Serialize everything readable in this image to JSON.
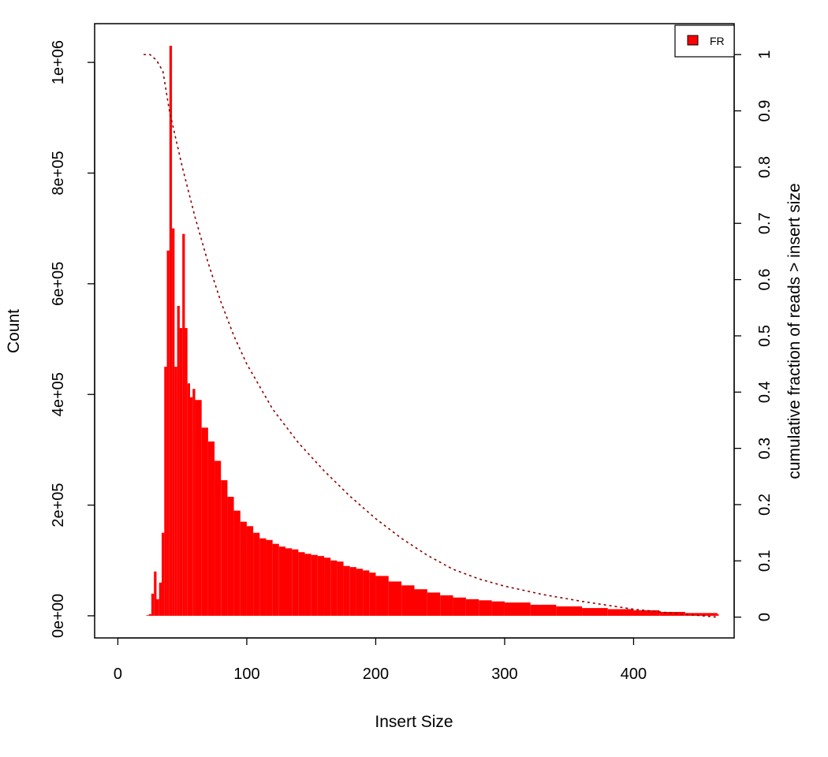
{
  "chart_data": {
    "type": "bar",
    "title": "",
    "xlabel": "Insert Size",
    "ylabel": "Count",
    "y2label": "cumulative fraction of reads > insert size",
    "xlim": [
      -18,
      478
    ],
    "ylim": [
      -40000,
      1070000
    ],
    "y2lim": [
      -0.037,
      1.055
    ],
    "xticks": [
      "0",
      "100",
      "200",
      "300",
      "400"
    ],
    "yticks": [
      "0e+00",
      "2e+05",
      "4e+05",
      "6e+05",
      "8e+05",
      "1e+06"
    ],
    "y2ticks": [
      "0",
      "0.1",
      "0.2",
      "0.3",
      "0.4",
      "0.5",
      "0.6",
      "0.7",
      "0.8",
      "0.9",
      "1"
    ],
    "legend": {
      "position": "top-right",
      "entries": [
        "FR"
      ]
    },
    "grid": false,
    "colors": {
      "bars": "#ff0000",
      "cumulative": "#8b0000",
      "legend_fill": "#ff0000"
    },
    "series": [
      {
        "name": "FR",
        "type": "bar",
        "x": [
          20,
          22,
          24,
          26,
          28,
          30,
          32,
          34,
          36,
          38,
          40,
          42,
          44,
          46,
          48,
          50,
          52,
          54,
          56,
          58,
          60,
          65,
          70,
          75,
          80,
          85,
          90,
          95,
          100,
          105,
          110,
          115,
          120,
          125,
          130,
          135,
          140,
          145,
          150,
          155,
          160,
          165,
          170,
          175,
          180,
          185,
          190,
          195,
          200,
          210,
          220,
          230,
          240,
          250,
          260,
          270,
          280,
          290,
          300,
          320,
          340,
          360,
          380,
          400,
          420,
          440,
          465
        ],
        "values": [
          0,
          1000,
          3000,
          40000,
          80000,
          30000,
          60000,
          150000,
          450000,
          660000,
          1030000,
          700000,
          450000,
          560000,
          520000,
          690000,
          520000,
          420000,
          395000,
          410000,
          390000,
          340000,
          315000,
          280000,
          245000,
          215000,
          190000,
          170000,
          162000,
          150000,
          140000,
          137000,
          130000,
          125000,
          122000,
          120000,
          115000,
          112000,
          110000,
          108000,
          105000,
          100000,
          98000,
          90000,
          88000,
          85000,
          82000,
          78000,
          72000,
          62000,
          55000,
          48000,
          42000,
          37000,
          33000,
          30000,
          28000,
          26000,
          24000,
          20000,
          17000,
          14000,
          12000,
          10000,
          7000,
          5000,
          3000
        ]
      },
      {
        "name": "cumulative",
        "type": "line",
        "x": [
          20,
          25,
          30,
          35,
          40,
          45,
          50,
          60,
          70,
          80,
          90,
          100,
          120,
          140,
          160,
          180,
          200,
          220,
          240,
          260,
          280,
          300,
          330,
          360,
          400,
          430,
          465
        ],
        "values": [
          1.0,
          1.0,
          0.99,
          0.97,
          0.9,
          0.85,
          0.8,
          0.71,
          0.63,
          0.56,
          0.5,
          0.45,
          0.37,
          0.31,
          0.26,
          0.215,
          0.175,
          0.14,
          0.11,
          0.085,
          0.068,
          0.055,
          0.04,
          0.028,
          0.014,
          0.007,
          0.0
        ]
      }
    ]
  }
}
